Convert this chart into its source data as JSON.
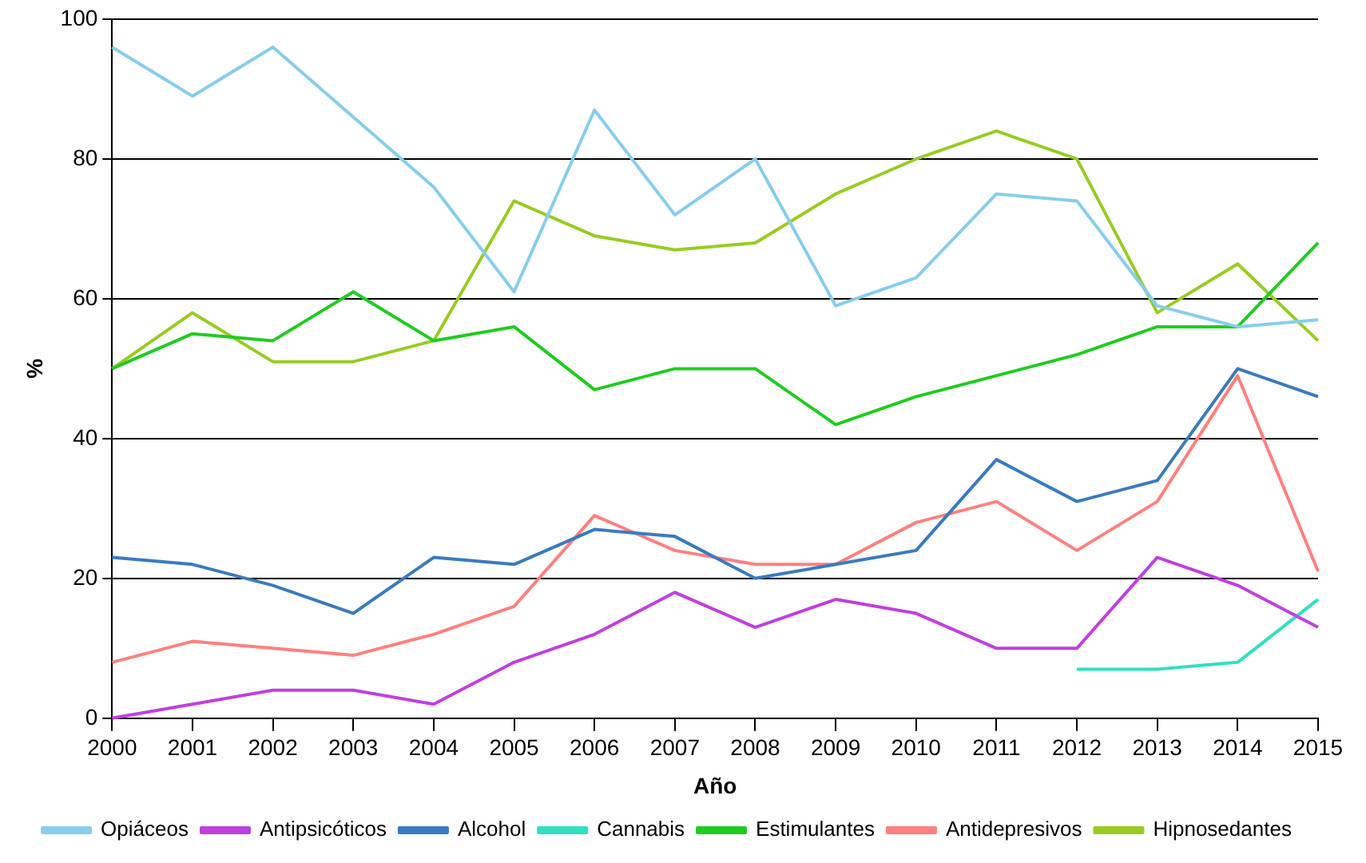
{
  "chart_data": {
    "type": "line",
    "xlabel": "Año",
    "ylabel": "%",
    "x": [
      2000,
      2001,
      2002,
      2003,
      2004,
      2005,
      2006,
      2007,
      2008,
      2009,
      2010,
      2011,
      2012,
      2013,
      2014,
      2015
    ],
    "xlim": [
      2000,
      2015
    ],
    "xticks": [
      2000,
      2001,
      2002,
      2003,
      2004,
      2005,
      2006,
      2007,
      2008,
      2009,
      2010,
      2011,
      2012,
      2013,
      2014,
      2015
    ],
    "ylim": [
      0,
      100
    ],
    "yticks": [
      0,
      20,
      40,
      60,
      80,
      100
    ],
    "grid": "y",
    "legend": "bottom",
    "marker": "none",
    "line_style": "solid",
    "series": [
      {
        "name": "Opiáceos",
        "color": "#87ceeb",
        "values": [
          96,
          89,
          96,
          86,
          76,
          61,
          87,
          72,
          80,
          59,
          63,
          75,
          74,
          59,
          56,
          57
        ]
      },
      {
        "name": "Antipsicóticos",
        "color": "#c040e0",
        "values": [
          0,
          2,
          4,
          4,
          2,
          8,
          12,
          18,
          13,
          17,
          15,
          10,
          10,
          23,
          19,
          13
        ]
      },
      {
        "name": "Alcohol",
        "color": "#3a7bbf",
        "values": [
          23,
          22,
          19,
          15,
          23,
          22,
          27,
          26,
          20,
          22,
          24,
          37,
          31,
          34,
          50,
          46
        ]
      },
      {
        "name": "Cannabis",
        "color": "#30e0c0",
        "values": [
          null,
          null,
          null,
          null,
          null,
          null,
          null,
          null,
          null,
          null,
          null,
          null,
          7,
          7,
          8,
          17
        ]
      },
      {
        "name": "Estimulantes",
        "color": "#20cc20",
        "values": [
          50,
          55,
          54,
          61,
          54,
          56,
          47,
          50,
          50,
          42,
          46,
          49,
          52,
          56,
          56,
          68
        ]
      },
      {
        "name": "Antidepresivos",
        "color": "#ff8080",
        "values": [
          8,
          11,
          10,
          9,
          12,
          16,
          29,
          24,
          22,
          22,
          28,
          31,
          24,
          31,
          49,
          21
        ]
      },
      {
        "name": "Hipnosedantes",
        "color": "#99cc22",
        "values": [
          50,
          58,
          51,
          51,
          54,
          74,
          69,
          67,
          68,
          75,
          80,
          84,
          80,
          58,
          65,
          54
        ]
      }
    ]
  }
}
